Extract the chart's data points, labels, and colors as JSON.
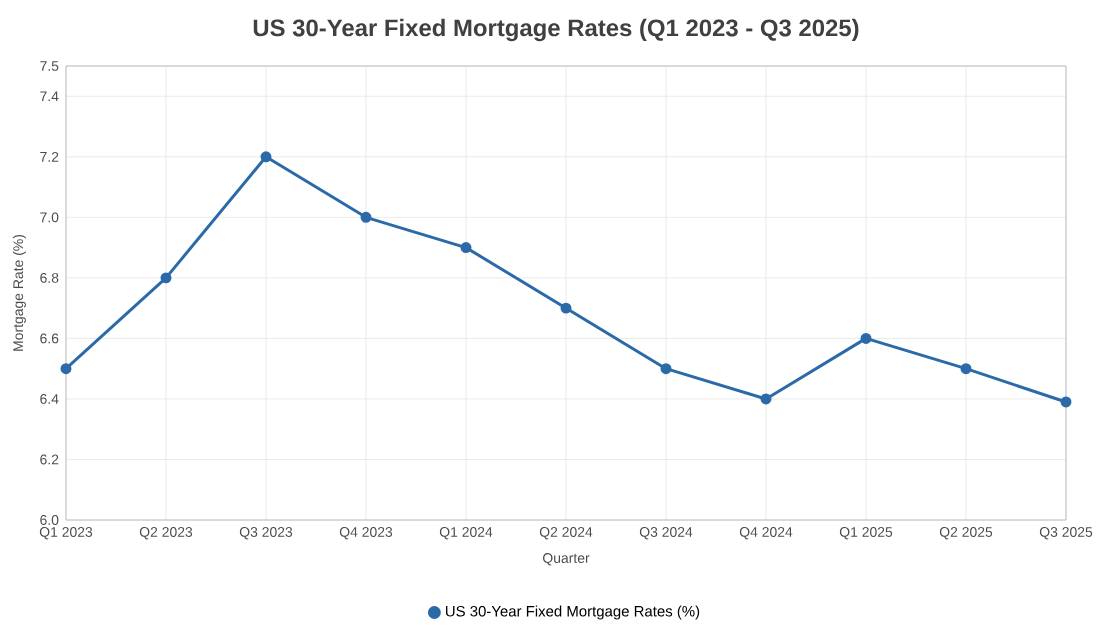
{
  "chart_data": {
    "type": "line",
    "title": "US 30-Year Fixed Mortgage Rates (Q1 2023 - Q3 2025)",
    "xlabel": "Quarter",
    "ylabel": "Mortgage Rate (%)",
    "categories": [
      "Q1 2023",
      "Q2 2023",
      "Q3 2023",
      "Q4 2023",
      "Q1 2024",
      "Q2 2024",
      "Q3 2024",
      "Q4 2024",
      "Q1 2025",
      "Q2 2025",
      "Q3 2025"
    ],
    "series": [
      {
        "name": "US 30-Year Fixed Mortgage Rates (%)",
        "color": "#2b6aa8",
        "values": [
          6.5,
          6.8,
          7.2,
          7.0,
          6.9,
          6.7,
          6.5,
          6.4,
          6.6,
          6.5,
          6.39
        ]
      }
    ],
    "ylim": [
      6.0,
      7.5
    ],
    "yticks": [
      {
        "value": 6.0,
        "label": "6.0"
      },
      {
        "value": 6.2,
        "label": "6.2"
      },
      {
        "value": 6.4,
        "label": "6.4"
      },
      {
        "value": 6.6,
        "label": "6.6"
      },
      {
        "value": 6.8,
        "label": "6.8"
      },
      {
        "value": 7.0,
        "label": "7.0"
      },
      {
        "value": 7.2,
        "label": "7.2"
      },
      {
        "value": 7.4,
        "label": "7.4"
      },
      {
        "value": 7.5,
        "label": "7.5"
      }
    ],
    "grid": true,
    "legend": "bottom",
    "marker": "circle",
    "line_style": "solid"
  }
}
